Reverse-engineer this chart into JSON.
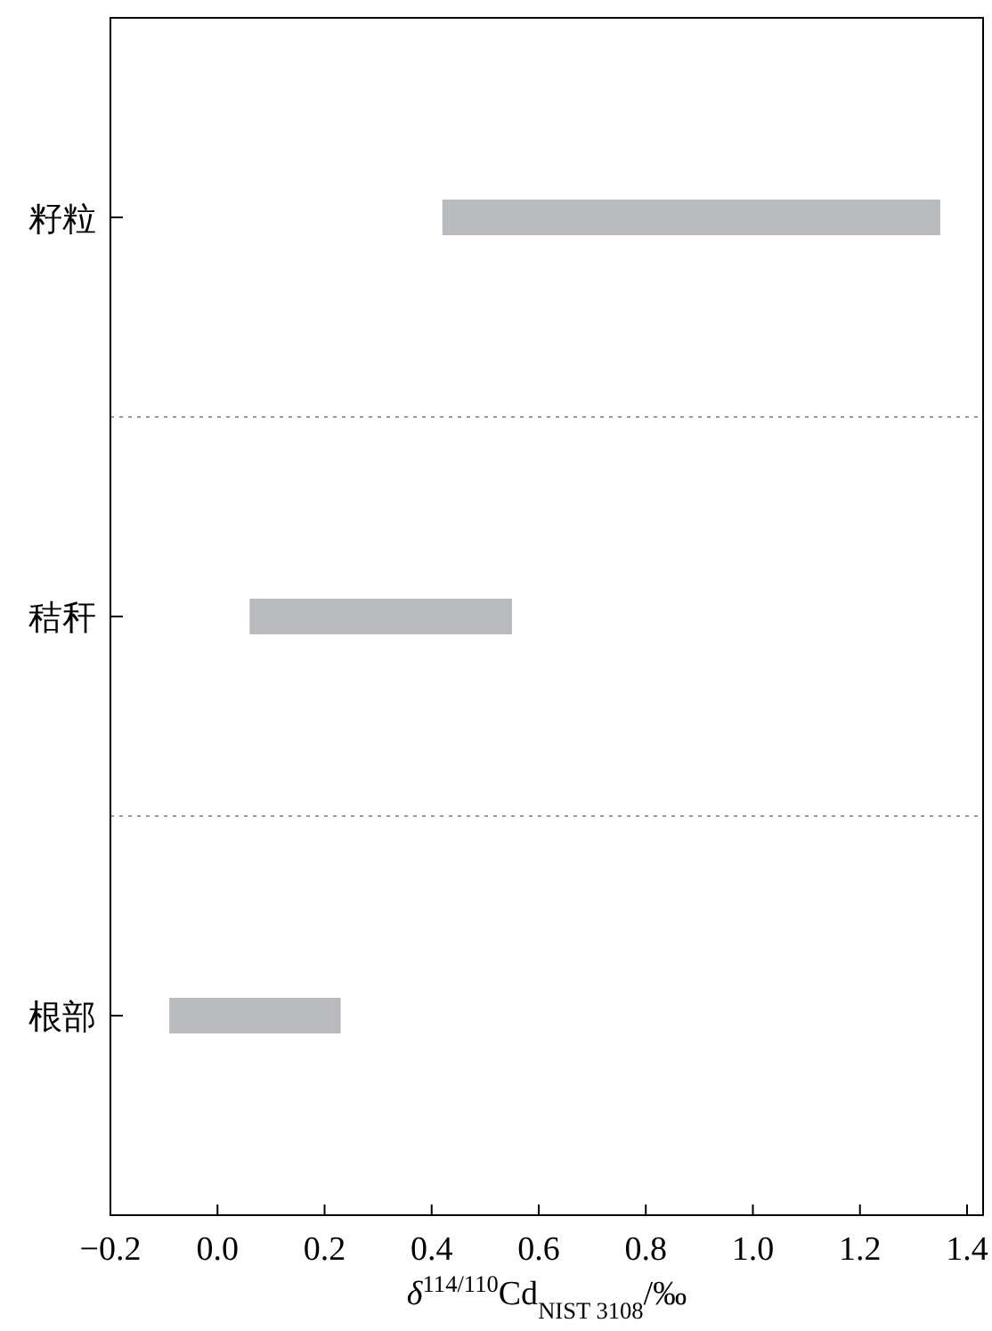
{
  "chart_data": {
    "type": "bar",
    "orientation": "horizontal",
    "categories": [
      "籽粒",
      "秸秆",
      "根部"
    ],
    "base": [
      0.42,
      0.06,
      -0.09
    ],
    "values": [
      0.93,
      0.49,
      0.32
    ],
    "color": "#b9babe",
    "xlabel": "*δ*$^{114/110}$Cd$_{NIST 3108}$/‰",
    "xlim": [
      -0.2,
      1.43
    ],
    "xticks": [
      {
        "value": -0.2,
        "label": "−0.2"
      },
      "0.0",
      0.2,
      0.4,
      0.6,
      0.8,
      "1.0",
      1.2,
      1.4
    ]
  }
}
